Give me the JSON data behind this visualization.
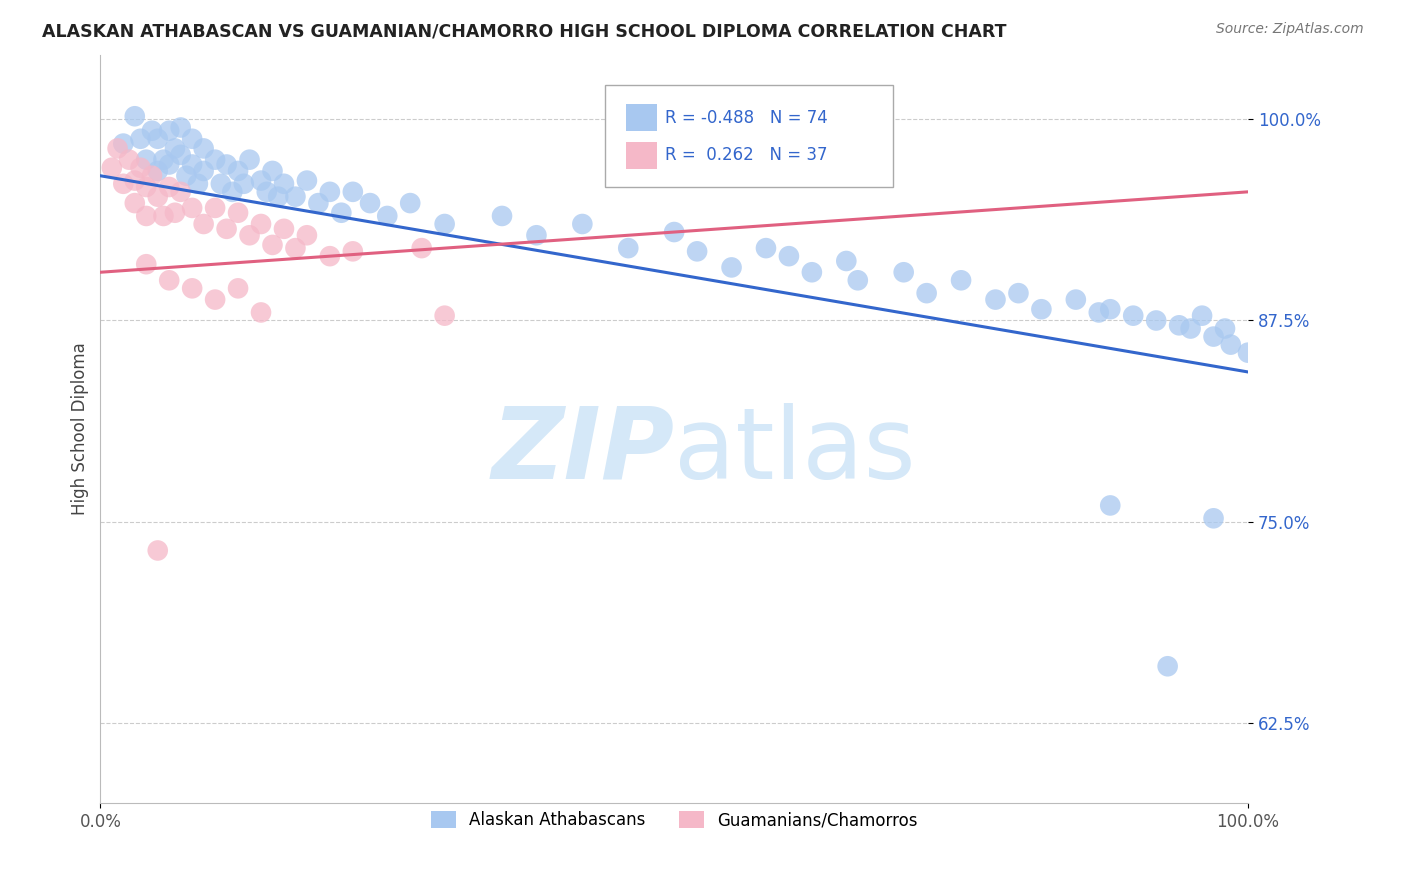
{
  "title": "ALASKAN ATHABASCAN VS GUAMANIAN/CHAMORRO HIGH SCHOOL DIPLOMA CORRELATION CHART",
  "source": "Source: ZipAtlas.com",
  "ylabel": "High School Diploma",
  "xlim": [
    0.0,
    1.0
  ],
  "ylim": [
    0.575,
    1.04
  ],
  "yticks": [
    0.625,
    0.75,
    0.875,
    1.0
  ],
  "ytick_labels": [
    "62.5%",
    "75.0%",
    "87.5%",
    "100.0%"
  ],
  "legend_r_blue": "-0.488",
  "legend_n_blue": "74",
  "legend_r_pink": "0.262",
  "legend_n_pink": "37",
  "blue_color": "#A8C8F0",
  "pink_color": "#F5B8C8",
  "blue_line_color": "#3366CC",
  "pink_line_color": "#E06080",
  "blue_line": [
    0.0,
    0.965,
    1.0,
    0.843
  ],
  "pink_line": [
    0.0,
    0.905,
    1.0,
    0.955
  ],
  "watermark_color": "#D5E8F8",
  "blue_scatter": [
    [
      0.02,
      0.985
    ],
    [
      0.03,
      1.002
    ],
    [
      0.035,
      0.988
    ],
    [
      0.04,
      0.975
    ],
    [
      0.045,
      0.993
    ],
    [
      0.05,
      0.968
    ],
    [
      0.05,
      0.988
    ],
    [
      0.055,
      0.975
    ],
    [
      0.06,
      0.993
    ],
    [
      0.06,
      0.972
    ],
    [
      0.065,
      0.982
    ],
    [
      0.07,
      0.995
    ],
    [
      0.07,
      0.978
    ],
    [
      0.075,
      0.965
    ],
    [
      0.08,
      0.988
    ],
    [
      0.08,
      0.972
    ],
    [
      0.085,
      0.96
    ],
    [
      0.09,
      0.982
    ],
    [
      0.09,
      0.968
    ],
    [
      0.1,
      0.975
    ],
    [
      0.105,
      0.96
    ],
    [
      0.11,
      0.972
    ],
    [
      0.115,
      0.955
    ],
    [
      0.12,
      0.968
    ],
    [
      0.125,
      0.96
    ],
    [
      0.13,
      0.975
    ],
    [
      0.14,
      0.962
    ],
    [
      0.145,
      0.955
    ],
    [
      0.15,
      0.968
    ],
    [
      0.155,
      0.952
    ],
    [
      0.16,
      0.96
    ],
    [
      0.17,
      0.952
    ],
    [
      0.18,
      0.962
    ],
    [
      0.19,
      0.948
    ],
    [
      0.2,
      0.955
    ],
    [
      0.21,
      0.942
    ],
    [
      0.22,
      0.955
    ],
    [
      0.235,
      0.948
    ],
    [
      0.25,
      0.94
    ],
    [
      0.27,
      0.948
    ],
    [
      0.3,
      0.935
    ],
    [
      0.35,
      0.94
    ],
    [
      0.38,
      0.928
    ],
    [
      0.42,
      0.935
    ],
    [
      0.46,
      0.92
    ],
    [
      0.5,
      0.93
    ],
    [
      0.52,
      0.918
    ],
    [
      0.55,
      0.908
    ],
    [
      0.58,
      0.92
    ],
    [
      0.6,
      0.915
    ],
    [
      0.62,
      0.905
    ],
    [
      0.65,
      0.912
    ],
    [
      0.66,
      0.9
    ],
    [
      0.7,
      0.905
    ],
    [
      0.72,
      0.892
    ],
    [
      0.75,
      0.9
    ],
    [
      0.78,
      0.888
    ],
    [
      0.8,
      0.892
    ],
    [
      0.82,
      0.882
    ],
    [
      0.85,
      0.888
    ],
    [
      0.87,
      0.88
    ],
    [
      0.88,
      0.882
    ],
    [
      0.9,
      0.878
    ],
    [
      0.92,
      0.875
    ],
    [
      0.94,
      0.872
    ],
    [
      0.95,
      0.87
    ],
    [
      0.96,
      0.878
    ],
    [
      0.97,
      0.865
    ],
    [
      0.98,
      0.87
    ],
    [
      0.985,
      0.86
    ],
    [
      1.0,
      0.855
    ],
    [
      0.88,
      0.76
    ],
    [
      0.93,
      0.66
    ],
    [
      0.97,
      0.752
    ]
  ],
  "pink_scatter": [
    [
      0.01,
      0.97
    ],
    [
      0.015,
      0.982
    ],
    [
      0.02,
      0.96
    ],
    [
      0.025,
      0.975
    ],
    [
      0.03,
      0.962
    ],
    [
      0.03,
      0.948
    ],
    [
      0.035,
      0.97
    ],
    [
      0.04,
      0.958
    ],
    [
      0.04,
      0.94
    ],
    [
      0.045,
      0.965
    ],
    [
      0.05,
      0.952
    ],
    [
      0.055,
      0.94
    ],
    [
      0.06,
      0.958
    ],
    [
      0.065,
      0.942
    ],
    [
      0.07,
      0.955
    ],
    [
      0.08,
      0.945
    ],
    [
      0.09,
      0.935
    ],
    [
      0.1,
      0.945
    ],
    [
      0.11,
      0.932
    ],
    [
      0.12,
      0.942
    ],
    [
      0.13,
      0.928
    ],
    [
      0.14,
      0.935
    ],
    [
      0.15,
      0.922
    ],
    [
      0.16,
      0.932
    ],
    [
      0.17,
      0.92
    ],
    [
      0.18,
      0.928
    ],
    [
      0.2,
      0.915
    ],
    [
      0.22,
      0.918
    ],
    [
      0.04,
      0.91
    ],
    [
      0.06,
      0.9
    ],
    [
      0.08,
      0.895
    ],
    [
      0.1,
      0.888
    ],
    [
      0.12,
      0.895
    ],
    [
      0.14,
      0.88
    ],
    [
      0.28,
      0.92
    ],
    [
      0.3,
      0.878
    ],
    [
      0.05,
      0.732
    ]
  ],
  "background_color": "#FFFFFF",
  "grid_color": "#CCCCCC"
}
